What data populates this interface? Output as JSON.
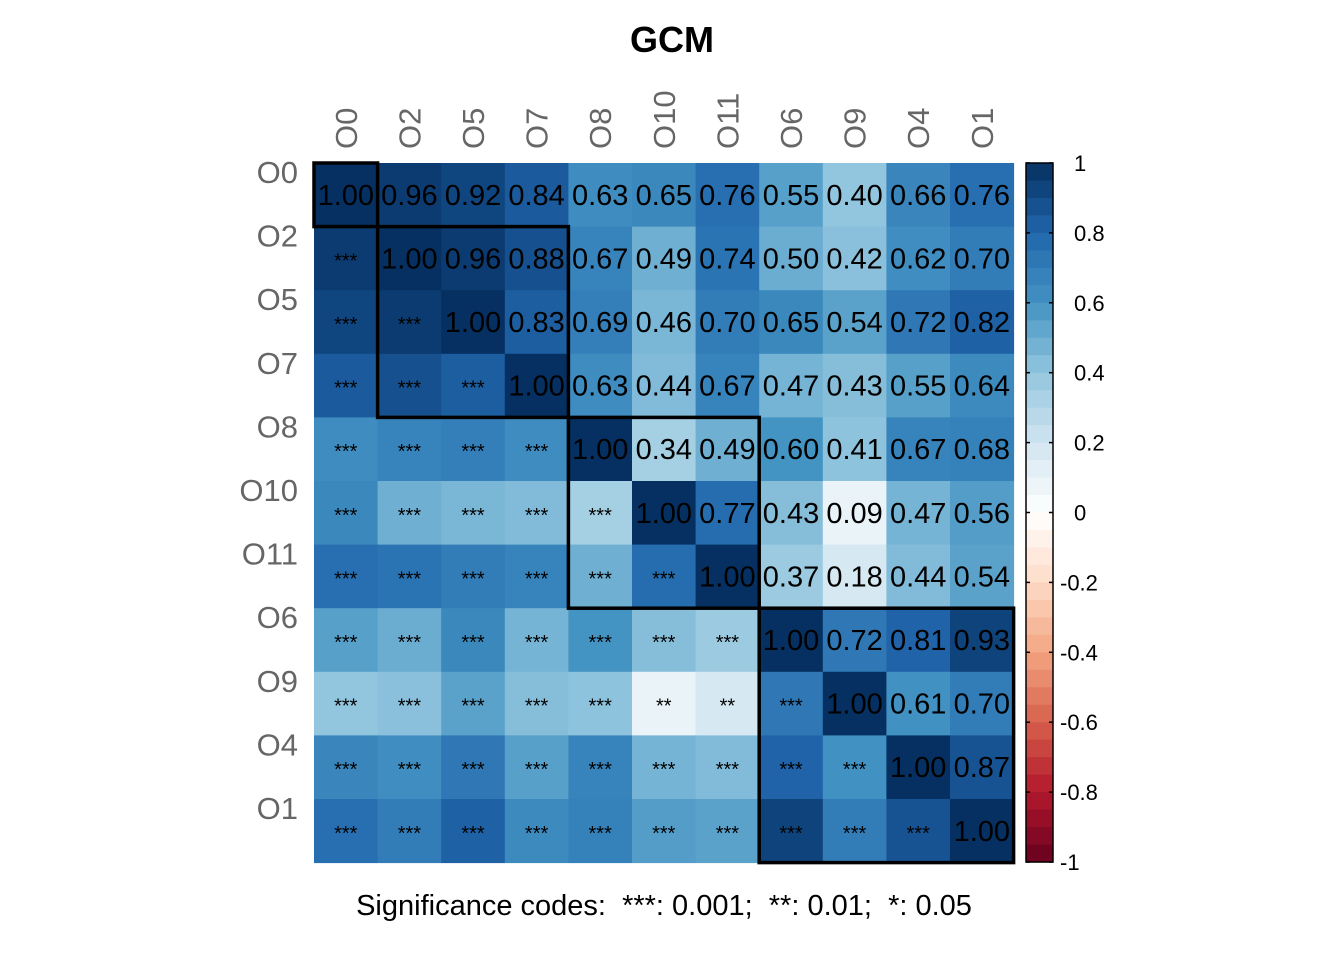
{
  "chart_data": {
    "type": "heatmap",
    "title": "GCM",
    "labels": [
      "O0",
      "O2",
      "O5",
      "O7",
      "O8",
      "O10",
      "O11",
      "O6",
      "O9",
      "O4",
      "O1"
    ],
    "matrix": [
      [
        1.0,
        0.96,
        0.92,
        0.84,
        0.63,
        0.65,
        0.76,
        0.55,
        0.4,
        0.66,
        0.76
      ],
      [
        0.96,
        1.0,
        0.96,
        0.88,
        0.67,
        0.49,
        0.74,
        0.5,
        0.42,
        0.62,
        0.7
      ],
      [
        0.92,
        0.96,
        1.0,
        0.83,
        0.69,
        0.46,
        0.7,
        0.65,
        0.54,
        0.72,
        0.82
      ],
      [
        0.84,
        0.88,
        0.83,
        1.0,
        0.63,
        0.44,
        0.67,
        0.47,
        0.43,
        0.55,
        0.64
      ],
      [
        0.63,
        0.67,
        0.69,
        0.63,
        1.0,
        0.34,
        0.49,
        0.6,
        0.41,
        0.67,
        0.68
      ],
      [
        0.65,
        0.49,
        0.46,
        0.44,
        0.34,
        1.0,
        0.77,
        0.43,
        0.09,
        0.47,
        0.56
      ],
      [
        0.76,
        0.74,
        0.7,
        0.67,
        0.49,
        0.77,
        1.0,
        0.37,
        0.18,
        0.44,
        0.54
      ],
      [
        0.55,
        0.5,
        0.65,
        0.47,
        0.6,
        0.43,
        0.37,
        1.0,
        0.72,
        0.81,
        0.93
      ],
      [
        0.4,
        0.42,
        0.54,
        0.43,
        0.41,
        0.09,
        0.18,
        0.72,
        1.0,
        0.61,
        0.7
      ],
      [
        0.66,
        0.62,
        0.72,
        0.55,
        0.67,
        0.47,
        0.44,
        0.81,
        0.61,
        1.0,
        0.87
      ],
      [
        0.76,
        0.7,
        0.82,
        0.64,
        0.68,
        0.56,
        0.54,
        0.93,
        0.7,
        0.87,
        1.0
      ]
    ],
    "upper_display": "values",
    "lower_display": "significance",
    "significance": [
      [
        "",
        "",
        "",
        "",
        "",
        "",
        "",
        "",
        "",
        "",
        ""
      ],
      [
        "***",
        "",
        "",
        "",
        "",
        "",
        "",
        "",
        "",
        "",
        ""
      ],
      [
        "***",
        "***",
        "",
        "",
        "",
        "",
        "",
        "",
        "",
        "",
        ""
      ],
      [
        "***",
        "***",
        "***",
        "",
        "",
        "",
        "",
        "",
        "",
        "",
        ""
      ],
      [
        "***",
        "***",
        "***",
        "***",
        "",
        "",
        "",
        "",
        "",
        "",
        ""
      ],
      [
        "***",
        "***",
        "***",
        "***",
        "***",
        "",
        "",
        "",
        "",
        "",
        ""
      ],
      [
        "***",
        "***",
        "***",
        "***",
        "***",
        "***",
        "",
        "",
        "",
        "",
        ""
      ],
      [
        "***",
        "***",
        "***",
        "***",
        "***",
        "***",
        "***",
        "",
        "",
        "",
        ""
      ],
      [
        "***",
        "***",
        "***",
        "***",
        "***",
        "**",
        "**",
        "***",
        "",
        "",
        ""
      ],
      [
        "***",
        "***",
        "***",
        "***",
        "***",
        "***",
        "***",
        "***",
        "***",
        "",
        ""
      ],
      [
        "***",
        "***",
        "***",
        "***",
        "***",
        "***",
        "***",
        "***",
        "***",
        "***",
        ""
      ]
    ],
    "clusters": [
      [
        0,
        0
      ],
      [
        1,
        3
      ],
      [
        4,
        6
      ],
      [
        7,
        10
      ]
    ],
    "colorbar": {
      "range": [
        -1,
        1
      ],
      "ticks": [
        "1",
        "0.8",
        "0.6",
        "0.4",
        "0.2",
        "0",
        "-0.2",
        "-0.4",
        "-0.6",
        "-0.8",
        "-1"
      ],
      "tick_values": [
        1,
        0.8,
        0.6,
        0.4,
        0.2,
        0,
        -0.2,
        -0.4,
        -0.6,
        -0.8,
        -1
      ],
      "palette": [
        "#67001F",
        "#B2182B",
        "#D6604D",
        "#F4A582",
        "#FDDBC7",
        "#FFFFFF",
        "#D1E5F0",
        "#92C5DE",
        "#4393C3",
        "#2166AC",
        "#053061"
      ]
    },
    "caption": "Significance codes:  ***: 0.001;  **: 0.01;  *: 0.05"
  }
}
